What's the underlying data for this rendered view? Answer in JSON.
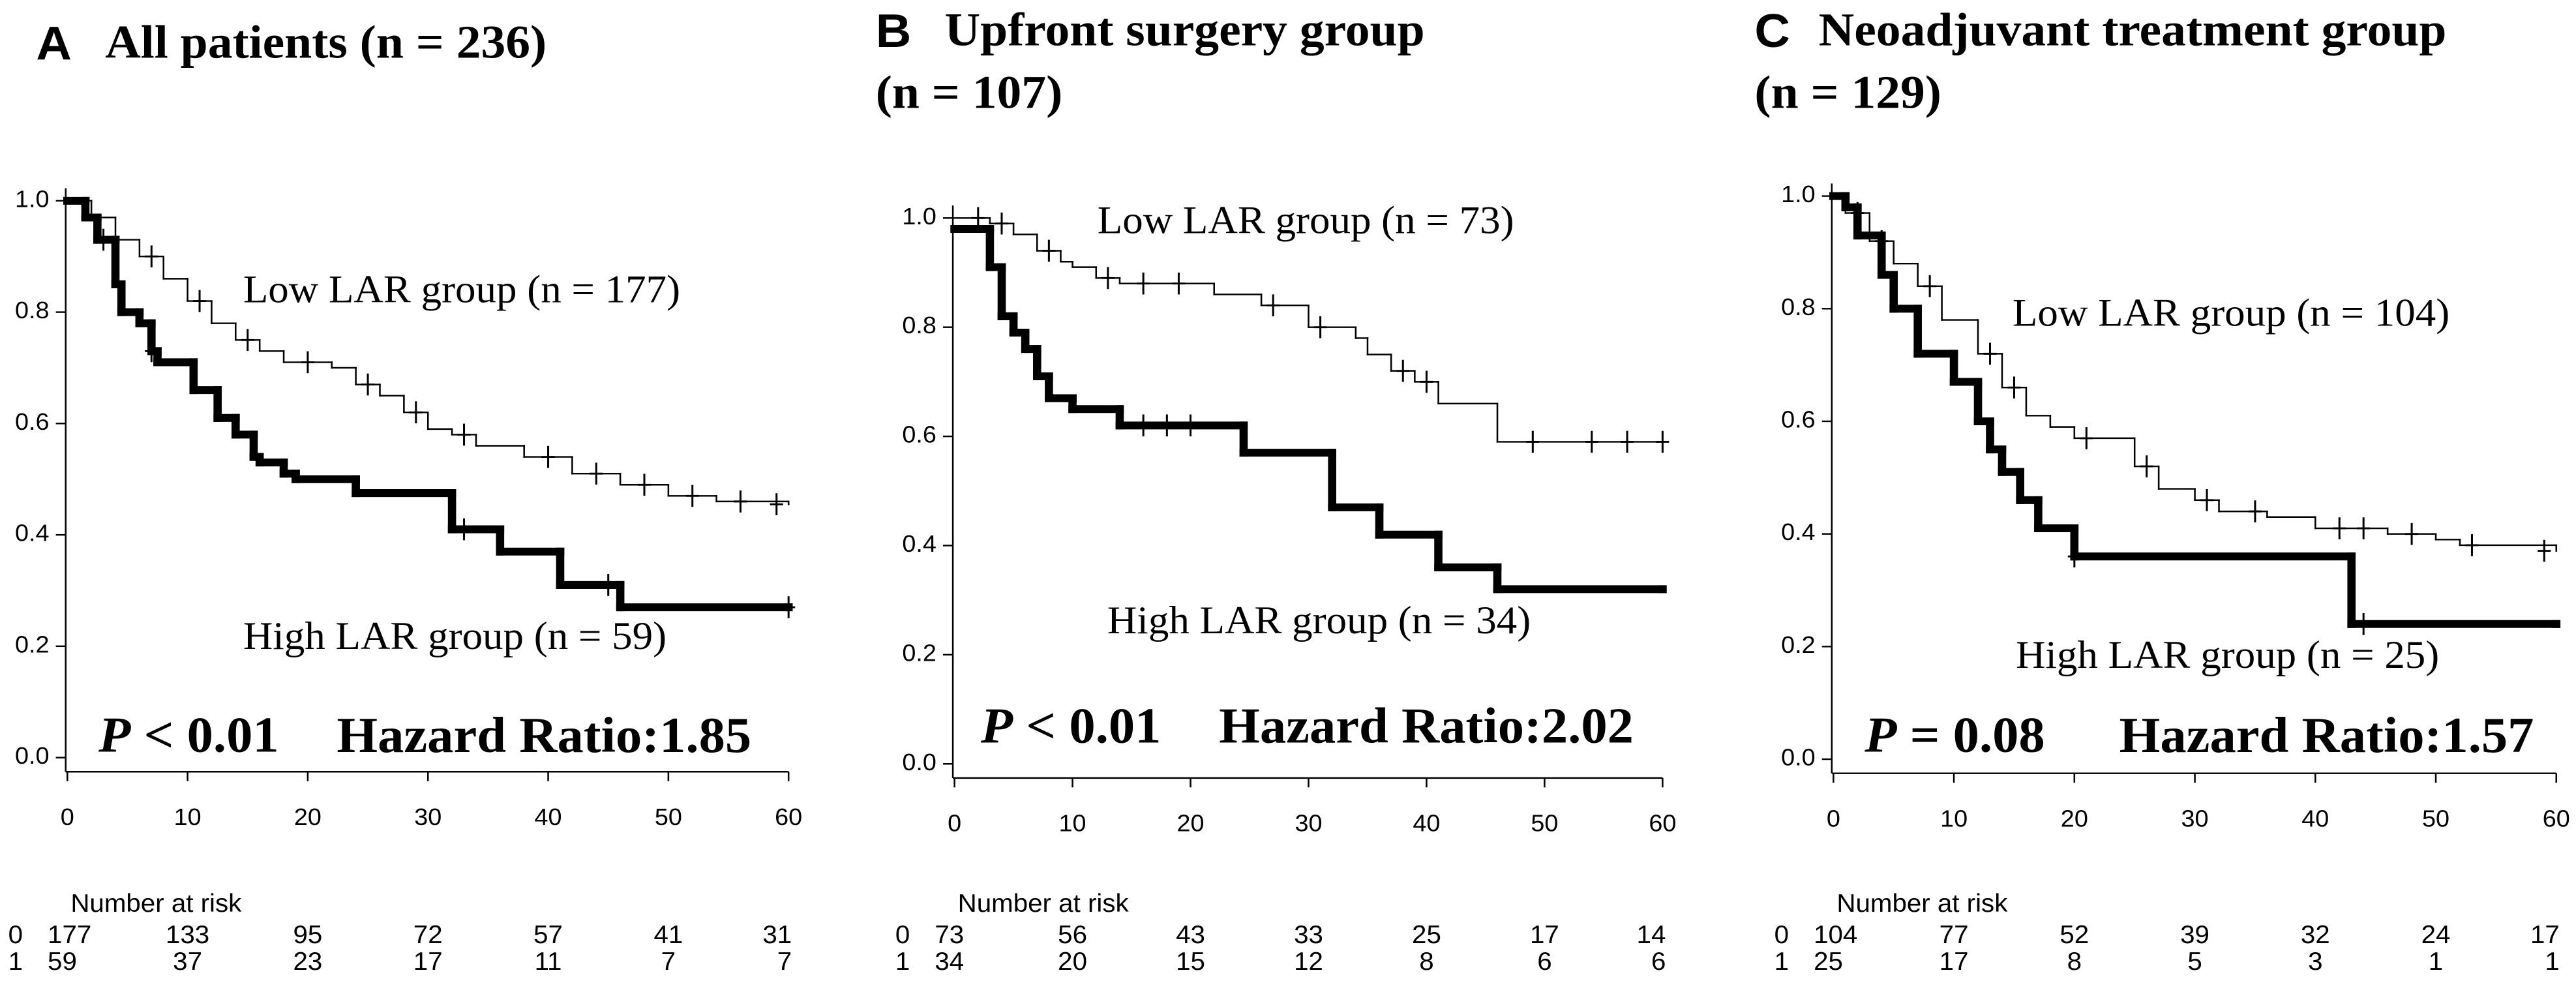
{
  "chart_data": [
    {
      "type": "step",
      "panel": "A",
      "title": [
        "All patients (n = 236)"
      ],
      "xlim": [
        0,
        60
      ],
      "xticks": [
        0,
        10,
        20,
        30,
        40,
        50,
        60
      ],
      "ylim": [
        0,
        1
      ],
      "yticks": [
        {
          "value": 0,
          "label": "0.0"
        },
        {
          "value": 0.2,
          "label": "0.2"
        },
        {
          "value": 0.4,
          "label": "0.4"
        },
        {
          "value": 0.6,
          "label": "0.6"
        },
        {
          "value": 0.8,
          "label": "0.8"
        },
        {
          "value": 1,
          "label": "1.0"
        }
      ],
      "series": [
        {
          "name": "Low LAR group (n = 177)",
          "color": "#000000",
          "width": 1,
          "x": [
            0,
            2,
            4,
            6,
            8,
            10,
            12,
            14,
            16,
            18,
            22,
            24,
            26,
            28,
            30,
            32,
            34,
            38,
            42,
            46,
            50,
            54,
            60
          ],
          "values": [
            1,
            0.97,
            0.93,
            0.9,
            0.86,
            0.82,
            0.78,
            0.75,
            0.73,
            0.71,
            0.7,
            0.67,
            0.65,
            0.62,
            0.59,
            0.58,
            0.56,
            0.54,
            0.51,
            0.49,
            0.47,
            0.46,
            0.455
          ],
          "censor_x": [
            3,
            7,
            11,
            15,
            20,
            25,
            29,
            33,
            40,
            44,
            48,
            52,
            56,
            59
          ],
          "censor_values": [
            0.93,
            0.9,
            0.82,
            0.75,
            0.71,
            0.67,
            0.62,
            0.58,
            0.54,
            0.51,
            0.49,
            0.47,
            0.46,
            0.455
          ]
        },
        {
          "name": "High LAR group (n = 59)",
          "color": "#000000",
          "width": 5,
          "x": [
            0,
            1.5,
            2.5,
            4,
            4.5,
            6,
            7,
            7.5,
            10.5,
            12.5,
            14,
            15.5,
            16,
            18,
            19,
            24,
            32,
            36,
            41,
            46,
            60
          ],
          "values": [
            1,
            0.97,
            0.93,
            0.85,
            0.8,
            0.78,
            0.73,
            0.71,
            0.66,
            0.61,
            0.58,
            0.54,
            0.53,
            0.51,
            0.5,
            0.475,
            0.41,
            0.37,
            0.31,
            0.27,
            0.27
          ],
          "censor_x": [
            7,
            33,
            45,
            60
          ],
          "censor_values": [
            0.73,
            0.41,
            0.31,
            0.27
          ]
        }
      ],
      "p_value": {
        "symbol": "P",
        "text": "< 0.01"
      },
      "hazard_ratio": "Hazard Ratio:1.85",
      "risk_table": {
        "title": "Number at risk",
        "rows": [
          {
            "label": "0",
            "values": [
              177,
              133,
              95,
              72,
              57,
              41,
              31
            ]
          },
          {
            "label": "1",
            "values": [
              59,
              37,
              23,
              17,
              11,
              7,
              7
            ]
          }
        ]
      }
    },
    {
      "type": "step",
      "panel": "B",
      "title": [
        "Upfront surgery group",
        "(n = 107)"
      ],
      "xlim": [
        0,
        60
      ],
      "xticks": [
        0,
        10,
        20,
        30,
        40,
        50,
        60
      ],
      "ylim": [
        0,
        1
      ],
      "yticks": [
        {
          "value": 0,
          "label": "0.0"
        },
        {
          "value": 0.2,
          "label": "0.2"
        },
        {
          "value": 0.4,
          "label": "0.4"
        },
        {
          "value": 0.6,
          "label": "0.6"
        },
        {
          "value": 0.8,
          "label": "0.8"
        },
        {
          "value": 1,
          "label": "1.0"
        }
      ],
      "series": [
        {
          "name": "Low LAR group (n = 73)",
          "color": "#000000",
          "width": 1,
          "x": [
            0,
            3,
            5,
            7,
            9,
            10,
            12,
            14,
            22,
            26,
            30,
            34,
            35,
            37,
            39,
            41,
            46,
            60
          ],
          "values": [
            1,
            0.99,
            0.97,
            0.94,
            0.92,
            0.91,
            0.89,
            0.88,
            0.86,
            0.84,
            0.8,
            0.78,
            0.75,
            0.72,
            0.7,
            0.66,
            0.59,
            0.59
          ],
          "censor_x": [
            2,
            4,
            8,
            13,
            16,
            19,
            27,
            31,
            38,
            40,
            49,
            54,
            57,
            60
          ],
          "censor_values": [
            1,
            0.99,
            0.94,
            0.89,
            0.88,
            0.88,
            0.84,
            0.8,
            0.72,
            0.7,
            0.59,
            0.59,
            0.59,
            0.59
          ]
        },
        {
          "name": "High LAR group (n = 34)",
          "color": "#000000",
          "width": 5,
          "x": [
            0,
            3,
            4,
            5,
            6,
            7,
            8,
            10,
            14,
            24.5,
            32,
            36,
            41,
            46,
            60
          ],
          "values": [
            0.98,
            0.91,
            0.82,
            0.79,
            0.76,
            0.71,
            0.67,
            0.65,
            0.62,
            0.57,
            0.47,
            0.42,
            0.36,
            0.32,
            0.32
          ],
          "censor_x": [
            16,
            18,
            20
          ],
          "censor_values": [
            0.62,
            0.62,
            0.62
          ]
        }
      ],
      "p_value": {
        "symbol": "P",
        "text": "< 0.01"
      },
      "hazard_ratio": "Hazard Ratio:2.02",
      "risk_table": {
        "title": "Number at risk",
        "rows": [
          {
            "label": "0",
            "values": [
              73,
              56,
              43,
              33,
              25,
              17,
              14
            ]
          },
          {
            "label": "1",
            "values": [
              34,
              20,
              15,
              12,
              8,
              6,
              6
            ]
          }
        ]
      }
    },
    {
      "type": "step",
      "panel": "C",
      "title": [
        "Neoadjuvant treatment group",
        "(n = 129)"
      ],
      "xlim": [
        0,
        60
      ],
      "xticks": [
        0,
        10,
        20,
        30,
        40,
        50,
        60
      ],
      "ylim": [
        0,
        1
      ],
      "yticks": [
        {
          "value": 0,
          "label": "0.0"
        },
        {
          "value": 0.2,
          "label": "0.2"
        },
        {
          "value": 0.4,
          "label": "0.4"
        },
        {
          "value": 0.6,
          "label": "0.6"
        },
        {
          "value": 0.8,
          "label": "0.8"
        },
        {
          "value": 1,
          "label": "1.0"
        }
      ],
      "series": [
        {
          "name": "Low LAR group (n = 104)",
          "color": "#000000",
          "width": 1,
          "x": [
            0,
            1,
            3,
            5,
            7,
            9,
            12,
            14,
            16,
            18,
            20,
            25,
            27,
            30,
            32,
            36,
            40,
            46,
            50,
            52,
            60
          ],
          "values": [
            1,
            0.97,
            0.92,
            0.88,
            0.84,
            0.78,
            0.72,
            0.66,
            0.61,
            0.59,
            0.57,
            0.52,
            0.48,
            0.46,
            0.44,
            0.43,
            0.41,
            0.4,
            0.39,
            0.38,
            0.37
          ],
          "censor_x": [
            2,
            4,
            8,
            13,
            15,
            21,
            26,
            31,
            35,
            42,
            44,
            48,
            53,
            59
          ],
          "censor_values": [
            0.97,
            0.92,
            0.84,
            0.72,
            0.66,
            0.57,
            0.52,
            0.46,
            0.44,
            0.41,
            0.41,
            0.4,
            0.38,
            0.37
          ]
        },
        {
          "name": "High LAR group (n = 25)",
          "color": "#000000",
          "width": 5,
          "x": [
            0,
            1,
            2,
            4,
            5,
            7,
            10,
            12,
            13,
            14,
            15.5,
            17,
            20,
            43,
            60
          ],
          "values": [
            1,
            0.98,
            0.93,
            0.86,
            0.8,
            0.72,
            0.67,
            0.6,
            0.55,
            0.51,
            0.46,
            0.41,
            0.36,
            0.24,
            0.24
          ],
          "censor_x": [
            20,
            44
          ],
          "censor_values": [
            0.36,
            0.24
          ]
        }
      ],
      "p_value": {
        "symbol": "P",
        "text": "= 0.08"
      },
      "hazard_ratio": "Hazard Ratio:1.57",
      "risk_table": {
        "title": "Number at risk",
        "rows": [
          {
            "label": "0",
            "values": [
              104,
              77,
              52,
              39,
              32,
              24,
              17
            ]
          },
          {
            "label": "1",
            "values": [
              25,
              17,
              8,
              5,
              3,
              1,
              1
            ]
          }
        ]
      }
    }
  ]
}
